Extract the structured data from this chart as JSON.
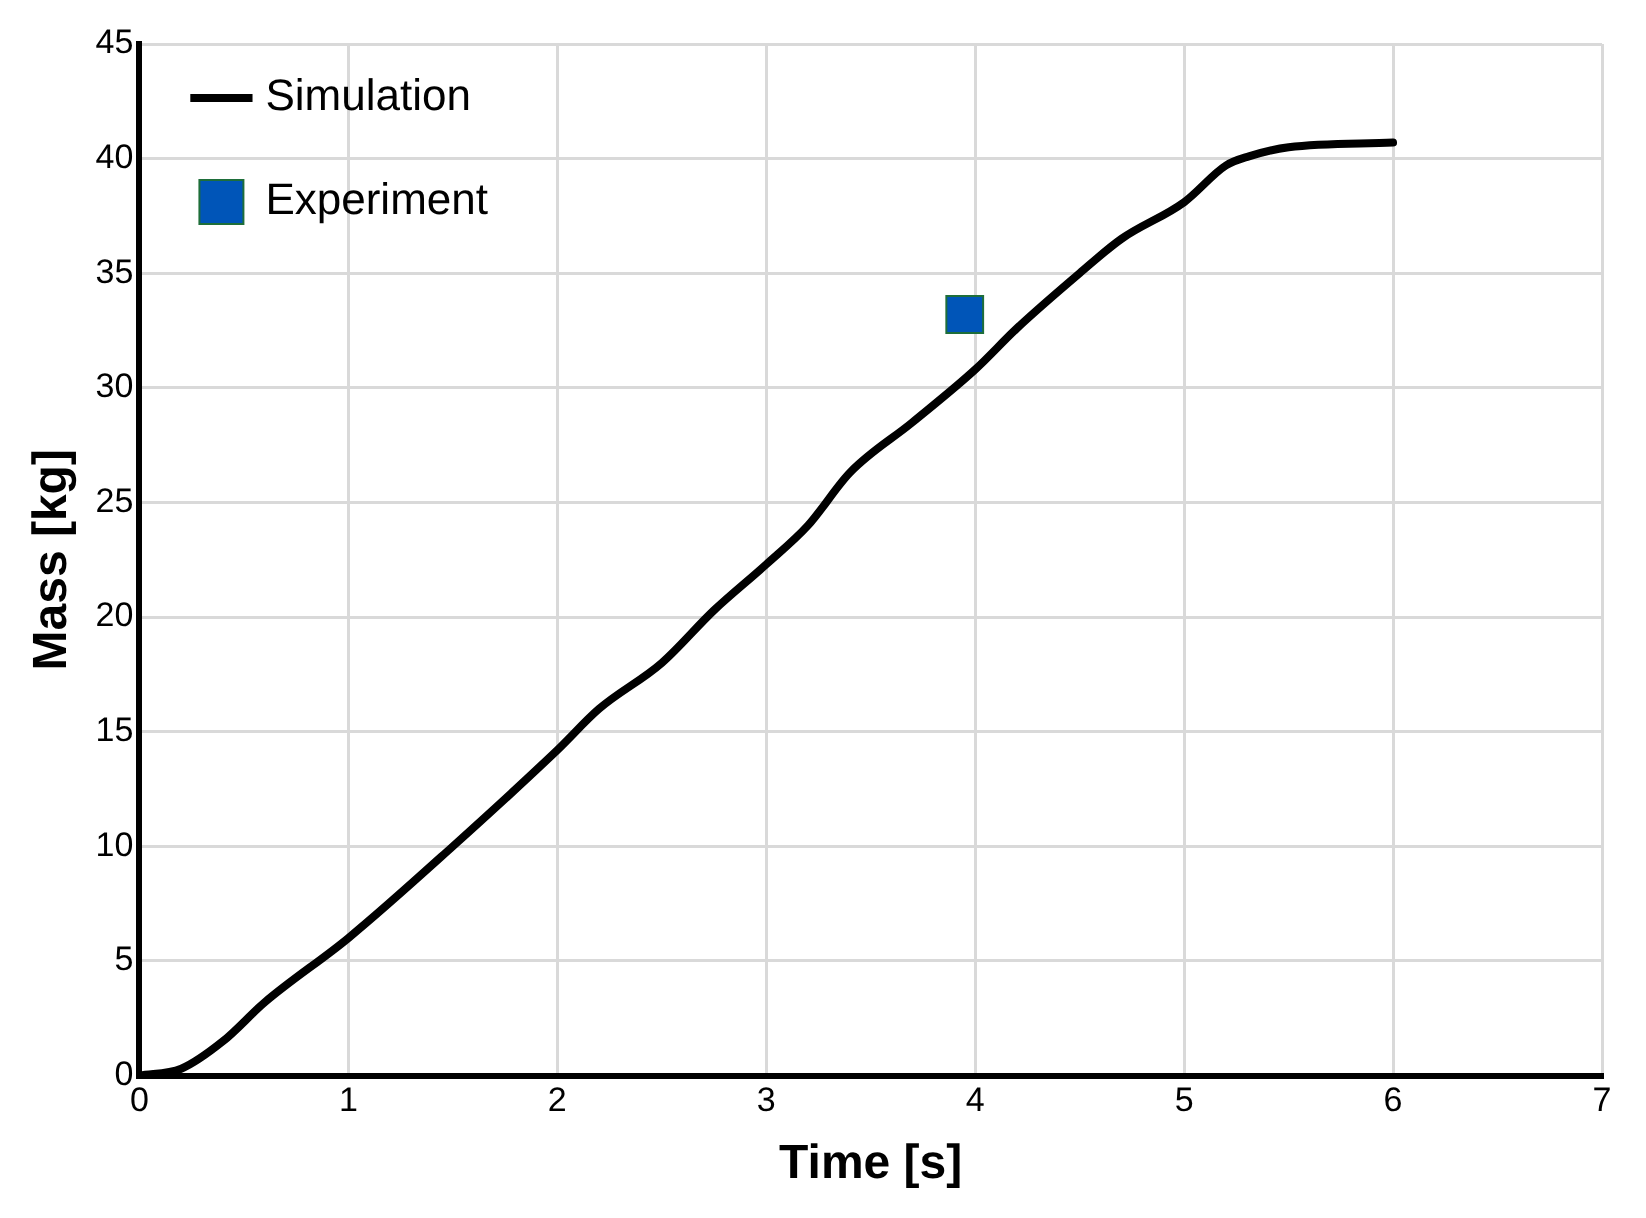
{
  "chart_data": {
    "type": "line",
    "xlabel": "Time [s]",
    "ylabel": "Mass [kg]",
    "xlim": [
      0,
      7
    ],
    "xticks": [
      0,
      1,
      2,
      3,
      4,
      5,
      6,
      7
    ],
    "ylim": [
      0,
      45
    ],
    "yticks": [
      0,
      5,
      10,
      15,
      20,
      25,
      30,
      35,
      40,
      45
    ],
    "grid": true,
    "legend": "top left",
    "series": [
      {
        "name": "Simulation",
        "color": "#000000",
        "marker": "none",
        "line_style": "solid",
        "x": [
          0,
          0.2,
          0.4,
          0.6,
          1,
          1.5,
          2,
          2.2,
          2.5,
          2.75,
          3,
          3.2,
          3.4,
          3.7,
          4,
          4.2,
          4.5,
          4.7,
          5,
          5.2,
          5.31,
          5.5,
          6
        ],
        "values": [
          0,
          0.3,
          1.5,
          3.2,
          6.0,
          10,
          14.2,
          16,
          18,
          20.3,
          22.3,
          24,
          26.3,
          28.5,
          30.8,
          32.6,
          35,
          36.5,
          38.1,
          39.7,
          40.1,
          40.5,
          40.7
        ]
      },
      {
        "name": "Experiment",
        "type": "scatter",
        "color": "#0055b8",
        "marker": "square",
        "x": [
          3.95
        ],
        "values": [
          33.2
        ]
      }
    ]
  }
}
